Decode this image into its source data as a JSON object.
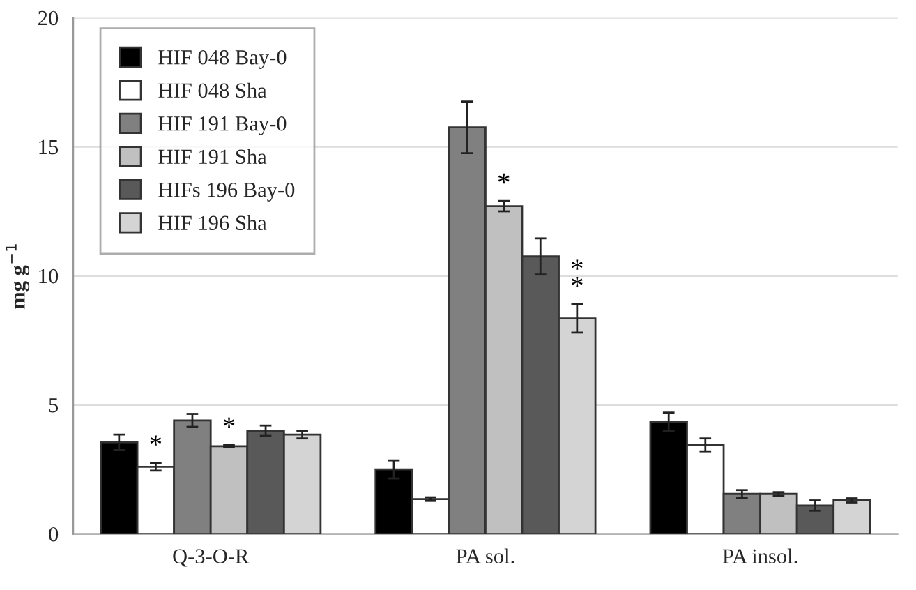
{
  "chart_data": {
    "type": "bar",
    "ylabel": "mg g$^{−1}$",
    "categories": [
      "Q-3-O-R",
      "PA sol.",
      "PA insol."
    ],
    "series": [
      {
        "name": "HIF 048 Bay-0",
        "color": "#000000",
        "values": [
          3.55,
          2.5,
          4.35
        ],
        "errors": [
          0.3,
          0.35,
          0.35
        ]
      },
      {
        "name": "HIF 048 Sha",
        "color": "#ffffff",
        "values": [
          2.6,
          1.35,
          3.45
        ],
        "errors": [
          0.15,
          0.07,
          0.25
        ],
        "value_labels": [
          "*",
          null,
          null
        ]
      },
      {
        "name": "HIF 191 Bay-0",
        "color": "#808080",
        "values": [
          4.4,
          15.75,
          1.55
        ],
        "errors": [
          0.25,
          1.0,
          0.15
        ]
      },
      {
        "name": "HIF 191 Sha",
        "color": "#c0c0c0",
        "values": [
          3.4,
          12.7,
          1.55
        ],
        "errors": [
          0.05,
          0.2,
          0.07
        ],
        "value_labels": [
          "*",
          "*",
          null
        ]
      },
      {
        "name": "HIFs 196 Bay-0",
        "color": "#595959",
        "values": [
          4.0,
          10.75,
          1.1
        ],
        "errors": [
          0.2,
          0.7,
          0.2
        ]
      },
      {
        "name": "HIF 196 Sha",
        "color": "#d4d4d4",
        "values": [
          3.85,
          8.35,
          1.3
        ],
        "errors": [
          0.15,
          0.55,
          0.08
        ],
        "value_labels": [
          null,
          "*\n*",
          null
        ]
      }
    ],
    "ylim": [
      0,
      20
    ],
    "yticks": [
      0,
      5,
      10,
      15,
      20
    ],
    "grid": "y",
    "legend": "top left"
  }
}
